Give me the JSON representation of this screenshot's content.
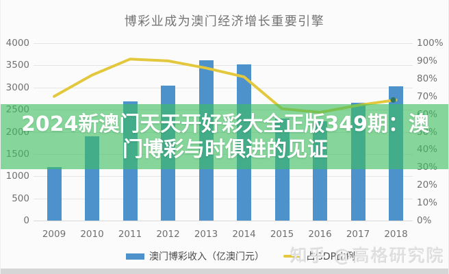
{
  "title": "博彩业成为澳门经济增长重要引擎",
  "overlay": {
    "line1": "2024新澳门天天开好彩大全正版349期：澳",
    "line2": "门博彩与时俱进的见证",
    "text_color": "#ffffff",
    "band_color_rgba": "rgba(62,190,96,0.62)"
  },
  "legend": {
    "bar_label": "澳门博彩收入（亿澳门元）",
    "line_label": "占GDP比例"
  },
  "watermark": "知乎 @高格研究院",
  "colors": {
    "bar": "#4e92cc",
    "line": "#e3c83e",
    "line_end_dot": "#2e7766",
    "grid": "#e4e4e4",
    "axis_text": "#6f6f6f",
    "title_text": "#737373",
    "background": "#fbfbfb",
    "bottom_strip": "#d6d6d6"
  },
  "chart_data": {
    "type": "bar",
    "title": "博彩业成为澳门经济增长重要引擎",
    "categories": [
      "2009",
      "2010",
      "2011",
      "2012",
      "2013",
      "2014",
      "2015",
      "2016",
      "2017",
      "2018"
    ],
    "series": [
      {
        "name": "澳门博彩收入（亿澳门元）",
        "type": "bar",
        "axis": "left",
        "color": "#4e92cc",
        "values": [
          1203,
          1896,
          2691,
          3041,
          3618,
          3515,
          2308,
          2232,
          2657,
          3028
        ]
      },
      {
        "name": "占GDP比例",
        "type": "line",
        "axis": "right",
        "color": "#e3c83e",
        "unit": "%",
        "values": [
          70,
          82,
          91,
          90,
          86,
          81,
          63,
          61,
          65,
          68
        ]
      }
    ],
    "left_axis": {
      "min": 0,
      "max": 4000,
      "step": 500,
      "tick_labels": [
        "4000",
        "3500",
        "3000",
        "2500",
        "2000",
        "1500",
        "1000",
        "500",
        "0"
      ]
    },
    "right_axis": {
      "min": 0,
      "max": 100,
      "step": 10,
      "tick_labels": [
        "100%",
        "90%",
        "80%",
        "70%",
        "60%",
        "50%",
        "40%",
        "30%",
        "20%",
        "10%",
        "0%"
      ]
    },
    "grid": true,
    "legend_position": "bottom"
  }
}
